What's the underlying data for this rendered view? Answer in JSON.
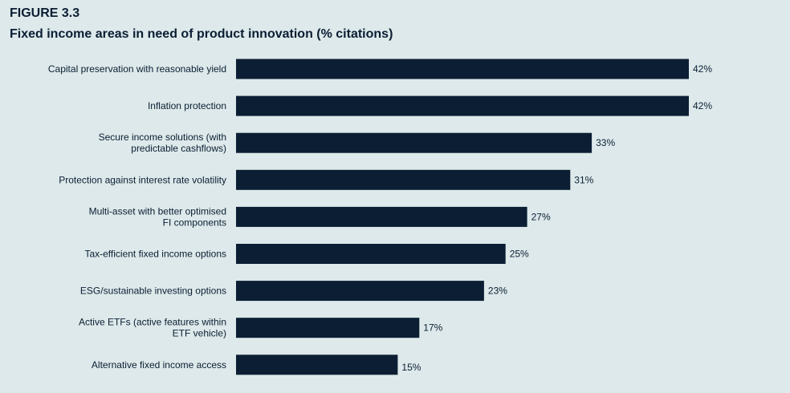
{
  "figure": {
    "label": "FIGURE 3.3",
    "title": "Fixed income areas in need of product innovation (% citations)"
  },
  "colors": {
    "background": "#dde9ea",
    "bar": "#0b1e33",
    "text": "#0b1e33"
  },
  "chart_data": {
    "type": "bar",
    "orientation": "horizontal",
    "title": "Fixed income areas in need of product innovation (% citations)",
    "xlabel": "",
    "ylabel": "",
    "unit": "%",
    "xlim": [
      0,
      42
    ],
    "grid": false,
    "legend": "none",
    "categories": [
      [
        "Capital preservation with reasonable yield"
      ],
      [
        "Inflation protection"
      ],
      [
        "Secure income solutions (with",
        "predictable cashflows)"
      ],
      [
        "Protection against interest rate volatility"
      ],
      [
        "Multi-asset with better optimised",
        "FI components"
      ],
      [
        "Tax-efficient fixed income options"
      ],
      [
        "ESG/sustainable investing options"
      ],
      [
        "Active ETFs (active features within",
        "ETF vehicle)"
      ],
      [
        "Alternative fixed income access"
      ]
    ],
    "values": [
      42,
      42,
      33,
      31,
      27,
      25,
      23,
      17,
      15
    ],
    "value_labels": [
      "42%",
      "42%",
      "33%",
      "31%",
      "27%",
      "25%",
      "23%",
      "17%",
      "15%"
    ]
  }
}
